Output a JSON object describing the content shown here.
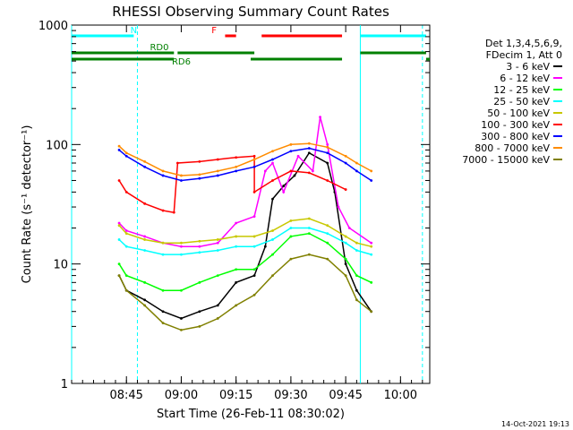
{
  "chart_data": {
    "type": "line",
    "title": "RHESSI Observing Summary Count Rates",
    "xlabel": "Start Time (26-Feb-11 08:30:02)",
    "ylabel": "Count Rate (s⁻¹ detector⁻¹)",
    "yscale": "log",
    "ylim": [
      1,
      1000
    ],
    "xlim": [
      "08:30",
      "10:08"
    ],
    "x_ticks": [
      "08:45",
      "09:00",
      "09:15",
      "09:30",
      "09:45",
      "10:00"
    ],
    "y_ticks": [
      "1",
      "10",
      "100",
      "1000"
    ],
    "grid": false,
    "legend_position": "right",
    "legend_header": [
      "Det 1,3,4,5,6,9,",
      "FDecim 1, Att 0"
    ],
    "footer_date": "14-Oct-2021 19:13",
    "vertical_lines": [
      {
        "time": "08:30",
        "color": "#00ffff",
        "style": "solid"
      },
      {
        "time": "08:48",
        "color": "#00ffff",
        "style": "dashed"
      },
      {
        "time": "09:49",
        "color": "#00ffff",
        "style": "solid"
      },
      {
        "time": "10:06",
        "color": "#00ffff",
        "style": "dashed"
      }
    ],
    "flag_bars": [
      {
        "label": "N",
        "label_time": "08:47",
        "color": "#00ffff",
        "level": 1,
        "segments": [
          [
            "08:30",
            "08:47"
          ],
          [
            "09:49",
            "10:07"
          ]
        ]
      },
      {
        "label": "F",
        "label_time": "09:09",
        "color": "#ff0000",
        "level": 1,
        "segments": [
          [
            "09:12",
            "09:15"
          ],
          [
            "09:22",
            "09:44"
          ]
        ]
      },
      {
        "label": "RD0",
        "label_time": "08:54",
        "color": "#008000",
        "level": 2,
        "segments": [
          [
            "08:30",
            "08:58"
          ],
          [
            "08:59",
            "09:20"
          ],
          [
            "09:49",
            "10:07"
          ]
        ]
      },
      {
        "label": "RD6",
        "label_time": "09:00",
        "color": "#008000",
        "level": 3,
        "segments": [
          [
            "08:30",
            "08:58"
          ],
          [
            "09:19",
            "09:44"
          ],
          [
            "10:07",
            "10:08"
          ]
        ]
      }
    ],
    "series": [
      {
        "name": "3 - 6 keV",
        "color": "#000000",
        "points": [
          [
            "08:43",
            8
          ],
          [
            "08:45",
            6
          ],
          [
            "08:50",
            5
          ],
          [
            "08:55",
            4
          ],
          [
            "09:00",
            3.5
          ],
          [
            "09:05",
            4
          ],
          [
            "09:10",
            4.5
          ],
          [
            "09:15",
            7
          ],
          [
            "09:20",
            8
          ],
          [
            "09:23",
            14
          ],
          [
            "09:25",
            35
          ],
          [
            "09:28",
            45
          ],
          [
            "09:31",
            55
          ],
          [
            "09:35",
            85
          ],
          [
            "09:40",
            70
          ],
          [
            "09:42",
            40
          ],
          [
            "09:45",
            10
          ],
          [
            "09:48",
            6
          ],
          [
            "09:52",
            4
          ]
        ]
      },
      {
        "name": "6 - 12 keV",
        "color": "#ff00ff",
        "points": [
          [
            "08:43",
            22
          ],
          [
            "08:45",
            19
          ],
          [
            "08:50",
            17
          ],
          [
            "08:55",
            15
          ],
          [
            "09:00",
            14
          ],
          [
            "09:05",
            14
          ],
          [
            "09:10",
            15
          ],
          [
            "09:15",
            22
          ],
          [
            "09:20",
            25
          ],
          [
            "09:23",
            60
          ],
          [
            "09:25",
            70
          ],
          [
            "09:28",
            40
          ],
          [
            "09:32",
            80
          ],
          [
            "09:36",
            60
          ],
          [
            "09:38",
            170
          ],
          [
            "09:40",
            100
          ],
          [
            "09:43",
            30
          ],
          [
            "09:46",
            20
          ],
          [
            "09:52",
            15
          ]
        ]
      },
      {
        "name": "12 - 25 keV",
        "color": "#00ff00",
        "points": [
          [
            "08:43",
            10
          ],
          [
            "08:45",
            8
          ],
          [
            "08:50",
            7
          ],
          [
            "08:55",
            6
          ],
          [
            "09:00",
            6
          ],
          [
            "09:05",
            7
          ],
          [
            "09:10",
            8
          ],
          [
            "09:15",
            9
          ],
          [
            "09:20",
            9
          ],
          [
            "09:25",
            12
          ],
          [
            "09:30",
            17
          ],
          [
            "09:35",
            18
          ],
          [
            "09:40",
            15
          ],
          [
            "09:45",
            11
          ],
          [
            "09:48",
            8
          ],
          [
            "09:52",
            7
          ]
        ]
      },
      {
        "name": "25 - 50 keV",
        "color": "#00ffff",
        "points": [
          [
            "08:43",
            16
          ],
          [
            "08:45",
            14
          ],
          [
            "08:50",
            13
          ],
          [
            "08:55",
            12
          ],
          [
            "09:00",
            12
          ],
          [
            "09:05",
            12.5
          ],
          [
            "09:10",
            13
          ],
          [
            "09:15",
            14
          ],
          [
            "09:20",
            14
          ],
          [
            "09:25",
            16
          ],
          [
            "09:30",
            20
          ],
          [
            "09:35",
            20
          ],
          [
            "09:40",
            18
          ],
          [
            "09:45",
            15
          ],
          [
            "09:48",
            13
          ],
          [
            "09:52",
            12
          ]
        ]
      },
      {
        "name": "50 - 100 keV",
        "color": "#c8c800",
        "points": [
          [
            "08:43",
            21
          ],
          [
            "08:45",
            18
          ],
          [
            "08:50",
            16
          ],
          [
            "08:55",
            15
          ],
          [
            "09:00",
            15
          ],
          [
            "09:05",
            15.5
          ],
          [
            "09:10",
            16
          ],
          [
            "09:15",
            17
          ],
          [
            "09:20",
            17
          ],
          [
            "09:25",
            19
          ],
          [
            "09:30",
            23
          ],
          [
            "09:35",
            24
          ],
          [
            "09:40",
            21
          ],
          [
            "09:45",
            17
          ],
          [
            "09:48",
            15
          ],
          [
            "09:52",
            14
          ]
        ]
      },
      {
        "name": "100 - 300 keV",
        "color": "#ff0000",
        "points": [
          [
            "08:43",
            50
          ],
          [
            "08:45",
            40
          ],
          [
            "08:50",
            32
          ],
          [
            "08:55",
            28
          ],
          [
            "08:58",
            27
          ],
          [
            "08:59",
            70
          ],
          [
            "09:05",
            72
          ],
          [
            "09:10",
            75
          ],
          [
            "09:15",
            78
          ],
          [
            "09:20",
            80
          ],
          [
            "09:20",
            40
          ],
          [
            "09:25",
            50
          ],
          [
            "09:30",
            60
          ],
          [
            "09:35",
            58
          ],
          [
            "09:40",
            50
          ],
          [
            "09:45",
            42
          ]
        ]
      },
      {
        "name": "300 - 800 keV",
        "color": "#0000ff",
        "points": [
          [
            "08:43",
            90
          ],
          [
            "08:45",
            80
          ],
          [
            "08:50",
            65
          ],
          [
            "08:55",
            55
          ],
          [
            "09:00",
            50
          ],
          [
            "09:05",
            52
          ],
          [
            "09:10",
            55
          ],
          [
            "09:15",
            60
          ],
          [
            "09:20",
            65
          ],
          [
            "09:25",
            75
          ],
          [
            "09:30",
            88
          ],
          [
            "09:35",
            93
          ],
          [
            "09:40",
            85
          ],
          [
            "09:45",
            70
          ],
          [
            "09:48",
            60
          ],
          [
            "09:52",
            50
          ]
        ]
      },
      {
        "name": "800 - 7000 keV",
        "color": "#ff8c00",
        "points": [
          [
            "08:43",
            97
          ],
          [
            "08:45",
            85
          ],
          [
            "08:50",
            72
          ],
          [
            "08:55",
            60
          ],
          [
            "09:00",
            55
          ],
          [
            "09:05",
            56
          ],
          [
            "09:10",
            60
          ],
          [
            "09:15",
            65
          ],
          [
            "09:20",
            75
          ],
          [
            "09:25",
            88
          ],
          [
            "09:30",
            100
          ],
          [
            "09:35",
            102
          ],
          [
            "09:40",
            95
          ],
          [
            "09:45",
            80
          ],
          [
            "09:48",
            70
          ],
          [
            "09:52",
            60
          ]
        ]
      },
      {
        "name": "7000 - 15000 keV",
        "color": "#808000",
        "points": [
          [
            "08:43",
            8
          ],
          [
            "08:45",
            6
          ],
          [
            "08:50",
            4.5
          ],
          [
            "08:55",
            3.2
          ],
          [
            "09:00",
            2.8
          ],
          [
            "09:05",
            3
          ],
          [
            "09:10",
            3.5
          ],
          [
            "09:15",
            4.5
          ],
          [
            "09:20",
            5.5
          ],
          [
            "09:25",
            8
          ],
          [
            "09:30",
            11
          ],
          [
            "09:35",
            12
          ],
          [
            "09:40",
            11
          ],
          [
            "09:45",
            8
          ],
          [
            "09:48",
            5
          ],
          [
            "09:52",
            4
          ]
        ]
      }
    ]
  }
}
